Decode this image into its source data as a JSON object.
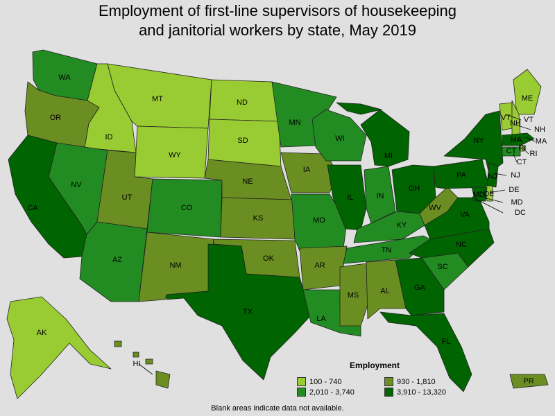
{
  "title_line1": "Employment of first-line supervisors of housekeeping",
  "title_line2": "and janitorial workers by state, May 2019",
  "legend": {
    "title": "Employment",
    "items": [
      {
        "label": "100 - 740",
        "color": "#99cc33"
      },
      {
        "label": "930 - 1,810",
        "color": "#6b8e23"
      },
      {
        "label": "2,010 - 3,740",
        "color": "#228b22"
      },
      {
        "label": "3,910 - 13,320",
        "color": "#006400"
      }
    ]
  },
  "footnote": "Blank areas indicate data not available.",
  "states": {
    "WA": 2,
    "OR": 1,
    "CA": 3,
    "ID": 0,
    "NV": 2,
    "MT": 0,
    "WY": 0,
    "UT": 1,
    "AZ": 2,
    "CO": 2,
    "NM": 1,
    "ND": 0,
    "SD": 0,
    "NE": 1,
    "KS": 1,
    "OK": 1,
    "TX": 3,
    "MN": 2,
    "IA": 1,
    "MO": 2,
    "AR": 1,
    "LA": 2,
    "WI": 2,
    "IL": 3,
    "MI": 3,
    "IN": 2,
    "OH": 3,
    "KY": 2,
    "TN": 2,
    "MS": 1,
    "AL": 1,
    "GA": 3,
    "FL": 3,
    "SC": 2,
    "NC": 3,
    "VA": 3,
    "WV": 1,
    "PA": 3,
    "NY": 3,
    "ME": 0,
    "VT": 0,
    "NH": 0,
    "MA": 3,
    "RI": 0,
    "CT": 2,
    "NJ": 3,
    "DE": 0,
    "MD": 3,
    "DC": 3,
    "AK": 0,
    "HI": 1,
    "PR": 1
  }
}
